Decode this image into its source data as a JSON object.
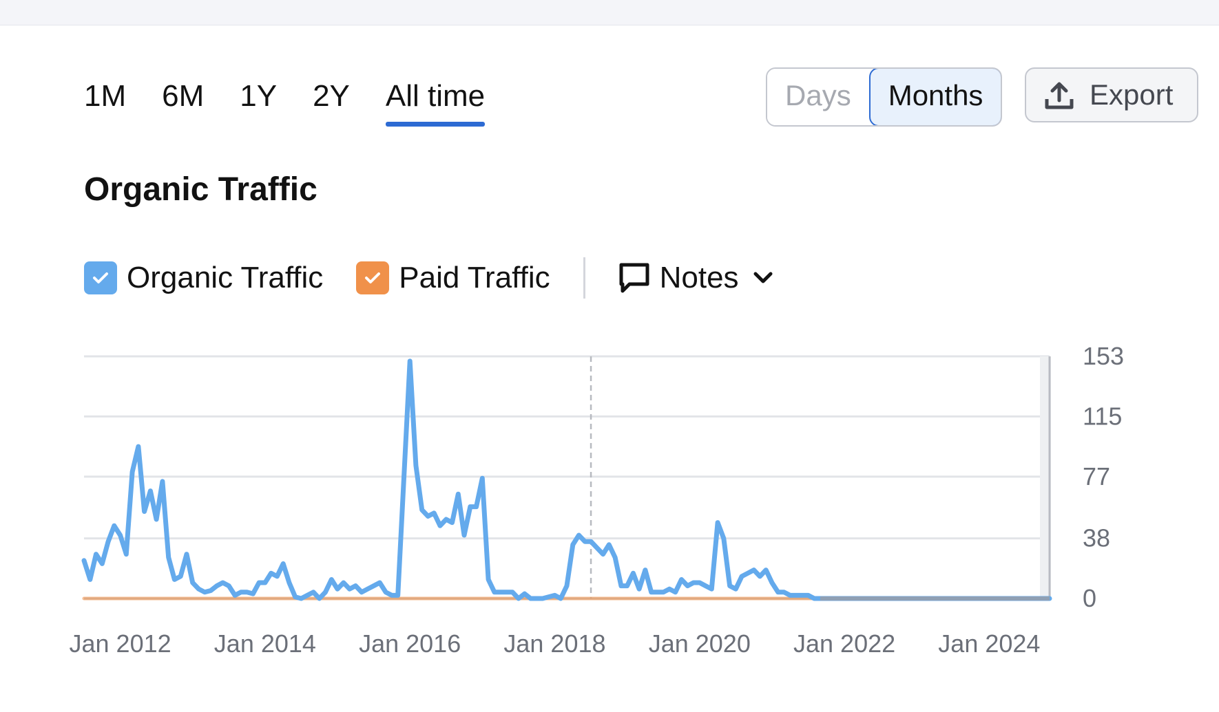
{
  "periods": [
    {
      "label": "1M",
      "active": false
    },
    {
      "label": "6M",
      "active": false
    },
    {
      "label": "1Y",
      "active": false
    },
    {
      "label": "2Y",
      "active": false
    },
    {
      "label": "All time",
      "active": true
    }
  ],
  "granularity": {
    "days_label": "Days",
    "months_label": "Months",
    "selected": "Months"
  },
  "export": {
    "label": "Export",
    "icon": "upload-icon"
  },
  "section_title": "Organic Traffic",
  "legend": {
    "organic_label": "Organic Traffic",
    "paid_label": "Paid Traffic",
    "notes_label": "Notes"
  },
  "colors": {
    "organic": "#64aaec",
    "paid": "#f0914a",
    "active_tab": "#2d6bd3",
    "grid": "#e2e4e8"
  },
  "chart_data": {
    "type": "line",
    "title": "",
    "xlabel": "",
    "ylabel": "",
    "x_start": "2011-07",
    "x_end": "2024-11",
    "x_tick_labels": [
      "Jan 2012",
      "Jan 2014",
      "Jan 2016",
      "Jan 2018",
      "Jan 2020",
      "Jan 2022",
      "Jan 2024"
    ],
    "y_ticks": [
      0,
      38,
      77,
      115,
      153
    ],
    "ylim": [
      0,
      153
    ],
    "grid": true,
    "vertical_marker": "2018-07",
    "series": [
      {
        "name": "Organic Traffic",
        "color": "#64aaec",
        "points": [
          [
            "2011-07",
            24
          ],
          [
            "2011-08",
            12
          ],
          [
            "2011-09",
            28
          ],
          [
            "2011-10",
            22
          ],
          [
            "2011-11",
            36
          ],
          [
            "2011-12",
            46
          ],
          [
            "2012-01",
            40
          ],
          [
            "2012-02",
            28
          ],
          [
            "2012-03",
            80
          ],
          [
            "2012-04",
            96
          ],
          [
            "2012-05",
            55
          ],
          [
            "2012-06",
            68
          ],
          [
            "2012-07",
            50
          ],
          [
            "2012-08",
            74
          ],
          [
            "2012-09",
            26
          ],
          [
            "2012-10",
            12
          ],
          [
            "2012-11",
            14
          ],
          [
            "2012-12",
            28
          ],
          [
            "2013-01",
            10
          ],
          [
            "2013-02",
            6
          ],
          [
            "2013-03",
            4
          ],
          [
            "2013-04",
            5
          ],
          [
            "2013-05",
            8
          ],
          [
            "2013-06",
            10
          ],
          [
            "2013-07",
            8
          ],
          [
            "2013-08",
            2
          ],
          [
            "2013-09",
            4
          ],
          [
            "2013-10",
            4
          ],
          [
            "2013-11",
            3
          ],
          [
            "2013-12",
            10
          ],
          [
            "2014-01",
            10
          ],
          [
            "2014-02",
            16
          ],
          [
            "2014-03",
            14
          ],
          [
            "2014-04",
            22
          ],
          [
            "2014-05",
            10
          ],
          [
            "2014-06",
            1
          ],
          [
            "2014-07",
            0
          ],
          [
            "2014-08",
            2
          ],
          [
            "2014-09",
            4
          ],
          [
            "2014-10",
            0
          ],
          [
            "2014-11",
            4
          ],
          [
            "2014-12",
            12
          ],
          [
            "2015-01",
            6
          ],
          [
            "2015-02",
            10
          ],
          [
            "2015-03",
            6
          ],
          [
            "2015-04",
            8
          ],
          [
            "2015-05",
            4
          ],
          [
            "2015-06",
            6
          ],
          [
            "2015-07",
            8
          ],
          [
            "2015-08",
            10
          ],
          [
            "2015-09",
            4
          ],
          [
            "2015-10",
            2
          ],
          [
            "2015-11",
            2
          ],
          [
            "2016-01",
            150
          ],
          [
            "2016-02",
            84
          ],
          [
            "2016-03",
            56
          ],
          [
            "2016-04",
            52
          ],
          [
            "2016-05",
            54
          ],
          [
            "2016-06",
            46
          ],
          [
            "2016-07",
            50
          ],
          [
            "2016-08",
            48
          ],
          [
            "2016-09",
            66
          ],
          [
            "2016-10",
            40
          ],
          [
            "2016-11",
            58
          ],
          [
            "2016-12",
            58
          ],
          [
            "2017-01",
            76
          ],
          [
            "2017-02",
            12
          ],
          [
            "2017-03",
            4
          ],
          [
            "2017-04",
            4
          ],
          [
            "2017-05",
            4
          ],
          [
            "2017-06",
            4
          ],
          [
            "2017-07",
            0
          ],
          [
            "2017-08",
            3
          ],
          [
            "2017-09",
            0
          ],
          [
            "2017-10",
            0
          ],
          [
            "2017-11",
            0
          ],
          [
            "2018-01",
            2
          ],
          [
            "2018-02",
            0
          ],
          [
            "2018-03",
            8
          ],
          [
            "2018-04",
            34
          ],
          [
            "2018-05",
            40
          ],
          [
            "2018-06",
            36
          ],
          [
            "2018-07",
            36
          ],
          [
            "2018-08",
            32
          ],
          [
            "2018-09",
            28
          ],
          [
            "2018-10",
            34
          ],
          [
            "2018-11",
            26
          ],
          [
            "2018-12",
            8
          ],
          [
            "2019-01",
            8
          ],
          [
            "2019-02",
            16
          ],
          [
            "2019-03",
            6
          ],
          [
            "2019-04",
            18
          ],
          [
            "2019-05",
            4
          ],
          [
            "2019-06",
            4
          ],
          [
            "2019-07",
            4
          ],
          [
            "2019-08",
            6
          ],
          [
            "2019-09",
            4
          ],
          [
            "2019-10",
            12
          ],
          [
            "2019-11",
            8
          ],
          [
            "2019-12",
            10
          ],
          [
            "2020-01",
            10
          ],
          [
            "2020-02",
            8
          ],
          [
            "2020-03",
            6
          ],
          [
            "2020-04",
            48
          ],
          [
            "2020-05",
            38
          ],
          [
            "2020-06",
            8
          ],
          [
            "2020-07",
            6
          ],
          [
            "2020-08",
            14
          ],
          [
            "2020-09",
            16
          ],
          [
            "2020-10",
            18
          ],
          [
            "2020-11",
            14
          ],
          [
            "2020-12",
            18
          ],
          [
            "2021-01",
            10
          ],
          [
            "2021-02",
            4
          ],
          [
            "2021-03",
            4
          ],
          [
            "2021-04",
            2
          ],
          [
            "2021-05",
            2
          ],
          [
            "2021-06",
            2
          ],
          [
            "2021-07",
            2
          ],
          [
            "2021-08",
            0
          ],
          [
            "2021-09",
            0
          ],
          [
            "2024-11",
            0
          ]
        ]
      },
      {
        "name": "Paid Traffic",
        "color": "#f0914a",
        "points": [
          [
            "2011-07",
            0
          ],
          [
            "2024-11",
            0
          ]
        ]
      }
    ]
  }
}
